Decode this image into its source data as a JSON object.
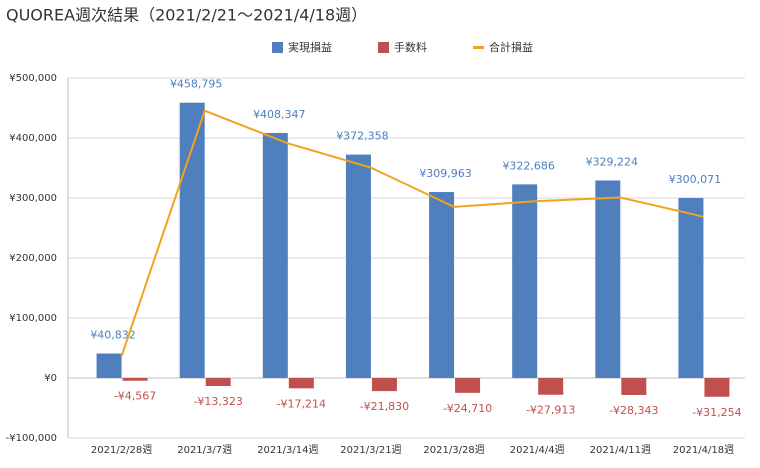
{
  "chart_data": {
    "type": "bar",
    "title": "QUOREA週次結果（2021/2/21～2021/4/18週）",
    "categories": [
      "2021/2/28週",
      "2021/3/7週",
      "2021/3/14週",
      "2021/3/21週",
      "2021/3/28週",
      "2021/4/4週",
      "2021/4/11週",
      "2021/4/18週"
    ],
    "series": [
      {
        "name": "実現損益",
        "color": "#4f7fbc",
        "kind": "bar",
        "values": [
          40832,
          458795,
          408347,
          372358,
          309963,
          322686,
          329224,
          300071
        ],
        "value_labels": [
          "¥40,832",
          "¥458,795",
          "¥408,347",
          "¥372,358",
          "¥309,963",
          "¥322,686",
          "¥329,224",
          "¥300,071"
        ]
      },
      {
        "name": "手数料",
        "color": "#c0504d",
        "kind": "bar",
        "values": [
          -4567,
          -13323,
          -17214,
          -21830,
          -24710,
          -27913,
          -28343,
          -31254
        ],
        "value_labels": [
          "-¥4,567",
          "-¥13,323",
          "-¥17,214",
          "-¥21,830",
          "-¥24,710",
          "-¥27,913",
          "-¥28,343",
          "-¥31,254"
        ]
      },
      {
        "name": "合計損益",
        "color": "#f2a31e",
        "kind": "line",
        "values": [
          36265,
          445472,
          391133,
          350528,
          285253,
          294773,
          300881,
          268817
        ]
      }
    ],
    "ylim": [
      -100000,
      500000
    ],
    "yticks": [
      {
        "value": -100000,
        "label": "-¥100,000"
      },
      {
        "value": 0,
        "label": "¥0"
      },
      {
        "value": 100000,
        "label": "¥100,000"
      },
      {
        "value": 200000,
        "label": "¥200,000"
      },
      {
        "value": 300000,
        "label": "¥300,000"
      },
      {
        "value": 400000,
        "label": "¥400,000"
      },
      {
        "value": 500000,
        "label": "¥500,000"
      }
    ],
    "grid": true,
    "legend": "top"
  }
}
